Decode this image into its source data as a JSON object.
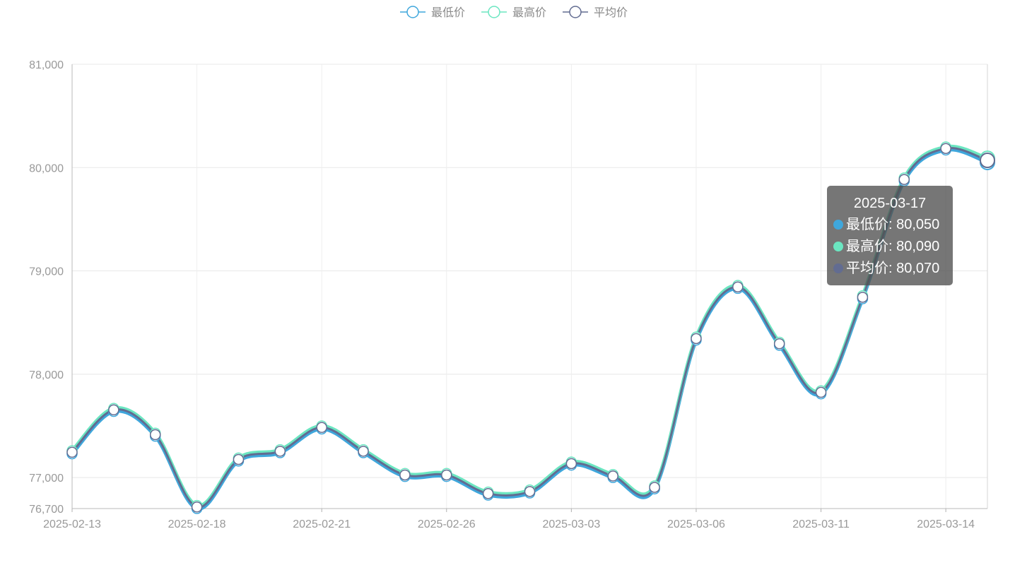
{
  "chart_data": {
    "type": "line",
    "smooth": true,
    "x": [
      "2025-02-13",
      "2025-02-14",
      "2025-02-17",
      "2025-02-18",
      "2025-02-19",
      "2025-02-20",
      "2025-02-21",
      "2025-02-24",
      "2025-02-25",
      "2025-02-26",
      "2025-02-27",
      "2025-02-28",
      "2025-03-03",
      "2025-03-04",
      "2025-03-05",
      "2025-03-06",
      "2025-03-07",
      "2025-03-10",
      "2025-03-11",
      "2025-03-12",
      "2025-03-13",
      "2025-03-14",
      "2025-03-17"
    ],
    "x_tick_labels": [
      "2025-02-13",
      "2025-02-18",
      "2025-02-21",
      "2025-02-26",
      "2025-03-03",
      "2025-03-06",
      "2025-03-11",
      "2025-03-14"
    ],
    "series": [
      {
        "name": "最低价",
        "color": "#3fa7dc",
        "values": [
          77230,
          77640,
          77400,
          76700,
          77160,
          77240,
          77470,
          77240,
          77010,
          77010,
          76830,
          76850,
          77120,
          77000,
          76890,
          78330,
          78830,
          78280,
          77810,
          78730,
          79870,
          80170,
          80050
        ]
      },
      {
        "name": "最高价",
        "color": "#6be6c1",
        "values": [
          77260,
          77670,
          77430,
          76730,
          77190,
          77270,
          77500,
          77270,
          77040,
          77040,
          76860,
          76880,
          77150,
          77030,
          76920,
          78360,
          78860,
          78310,
          77840,
          78760,
          79900,
          80200,
          80090
        ]
      },
      {
        "name": "平均价",
        "color": "#626c91",
        "values": [
          77245,
          77655,
          77415,
          76715,
          77175,
          77255,
          77485,
          77255,
          77025,
          77025,
          76845,
          76865,
          77135,
          77015,
          76905,
          78345,
          78845,
          78295,
          77825,
          78745,
          79885,
          80185,
          80070
        ]
      }
    ],
    "ylim": [
      76700,
      81000
    ],
    "y_ticks": [
      76700,
      77000,
      78000,
      79000,
      80000,
      81000
    ],
    "y_tick_labels": [
      "76,700",
      "77,000",
      "78,000",
      "79,000",
      "80,000",
      "81,000"
    ],
    "grid": true,
    "legend_position": "top-center"
  },
  "legend": [
    {
      "label": "最低价",
      "color": "#3fa7dc"
    },
    {
      "label": "最高价",
      "color": "#6be6c1"
    },
    {
      "label": "平均价",
      "color": "#626c91"
    }
  ],
  "tooltip": {
    "title": "2025-03-17",
    "rows": [
      {
        "text": "最低价: 80,050",
        "color": "#3fa7dc"
      },
      {
        "text": "最高价: 80,090",
        "color": "#6be6c1"
      },
      {
        "text": "平均价: 80,070",
        "color": "#626c91"
      }
    ]
  }
}
